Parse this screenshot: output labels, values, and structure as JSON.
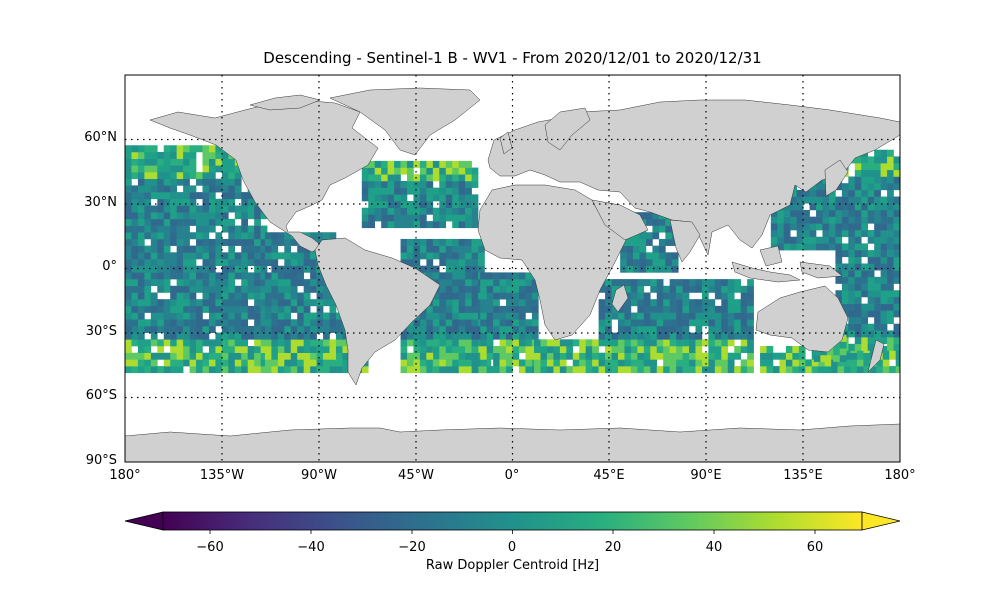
{
  "title": "Descending - Sentinel-1 B - WV1 - From 2020/12/01 to 2020/12/31",
  "map": {
    "lat_ticks": [
      "60°N",
      "30°N",
      "0°",
      "30°S",
      "60°S",
      "90°S"
    ],
    "lon_ticks": [
      "180°",
      "135°W",
      "90°W",
      "45°W",
      "0°",
      "45°E",
      "90°E",
      "135°E",
      "180°"
    ],
    "land_color": "#d0d0d0",
    "grid": "dotted",
    "data_extent": {
      "lat_min": -50,
      "lat_max": 50
    }
  },
  "colorbar": {
    "label": "Raw Doppler Centroid [Hz]",
    "ticks": [
      "−60",
      "−40",
      "−20",
      "0",
      "20",
      "40",
      "60"
    ],
    "range": [
      -75,
      75
    ],
    "colormap": "viridis",
    "extend": "both"
  }
}
